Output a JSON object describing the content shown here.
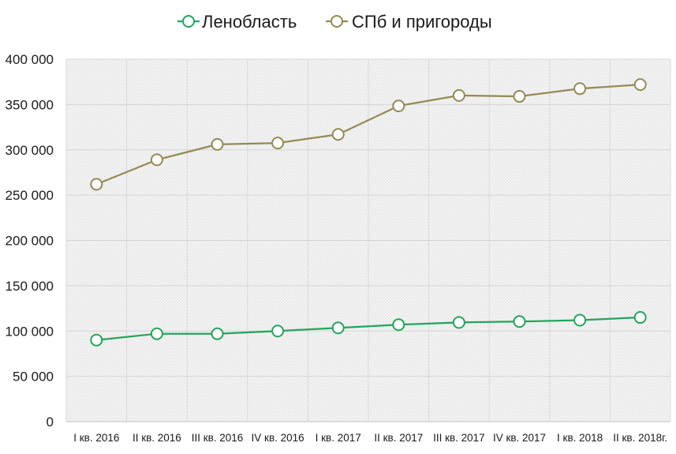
{
  "chart_data": {
    "type": "line",
    "title": "",
    "xlabel": "",
    "ylabel": "",
    "categories": [
      "I кв. 2016",
      "II кв. 2016",
      "III кв. 2016",
      "IV кв. 2016",
      "I кв. 2017",
      "II кв. 2017",
      "III кв. 2017",
      "IV кв. 2017",
      "I кв. 2018",
      "II кв. 2018г."
    ],
    "ylim": [
      0,
      400000
    ],
    "yticks": [
      0,
      50000,
      100000,
      150000,
      200000,
      250000,
      300000,
      350000,
      400000
    ],
    "ytick_labels": [
      "0",
      "50 000",
      "100 000",
      "150 000",
      "200 000",
      "250 000",
      "300 000",
      "350 000",
      "400 000"
    ],
    "grid": "vertical-and-horizontal",
    "legend": "top-center",
    "series": [
      {
        "name": "Ленобласть",
        "color": "#22a55b",
        "values": [
          90000,
          97000,
          97000,
          100000,
          103500,
          107000,
          109500,
          110500,
          112000,
          115000
        ]
      },
      {
        "name": "СПб и пригороды",
        "color": "#948a54",
        "values": [
          262000,
          289000,
          306000,
          307500,
          317000,
          348500,
          360000,
          359000,
          367500,
          372000
        ]
      }
    ]
  }
}
